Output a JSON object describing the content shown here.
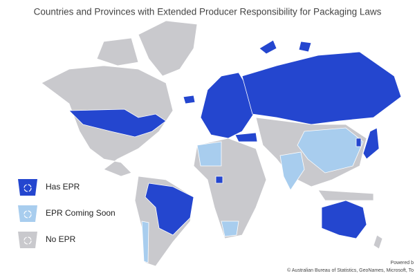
{
  "title": "Countries and Provinces with Extended Producer Responsibility for Packaging Laws",
  "legend": [
    {
      "label": "Has EPR",
      "color": "#2446cf"
    },
    {
      "label": "EPR Coming Soon",
      "color": "#a8cdee"
    },
    {
      "label": "No EPR",
      "color": "#c9c9cd"
    }
  ],
  "attribution": {
    "powered_by": "Powered b",
    "credits": "© Australian Bureau of Statistics, GeoNames, Microsoft, To"
  }
}
